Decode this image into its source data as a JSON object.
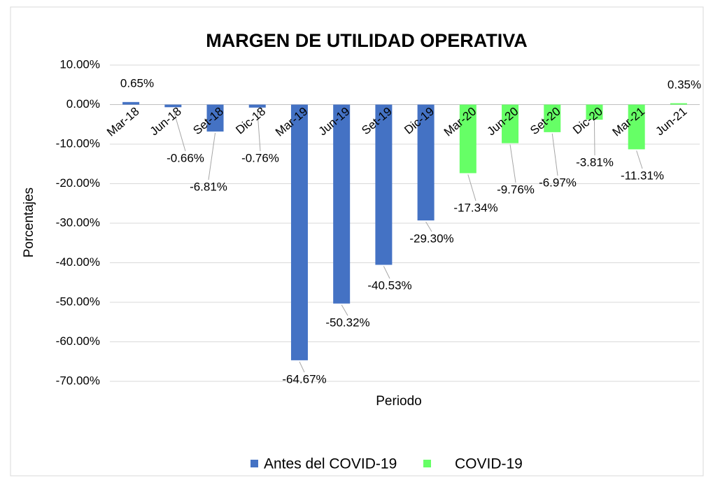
{
  "chart_data": {
    "type": "bar",
    "title": "MARGEN DE UTILIDAD OPERATIVA",
    "x_label": "Periodo",
    "y_label": "Porcentajes",
    "categories": [
      "Mar-18",
      "Jun-18",
      "Set-18",
      "Dic-18",
      "Mar-19",
      "Jun-19",
      "Set-19",
      "Dic-19",
      "Mar-20",
      "Jun-20",
      "Set-20",
      "Dic-20",
      "Mar-21",
      "Jun-21"
    ],
    "series": [
      {
        "name": "Antes del COVID-19",
        "color": "#4472c4",
        "values": [
          0.65,
          -0.66,
          -6.81,
          -0.76,
          -64.67,
          -50.32,
          -40.53,
          -29.3,
          null,
          null,
          null,
          null,
          null,
          null
        ],
        "value_labels": [
          "0.65%",
          "-0.66%",
          "-6.81%",
          "-0.76%",
          "-64.67%",
          "-50.32%",
          "-40.53%",
          "-29.30%",
          null,
          null,
          null,
          null,
          null,
          null
        ]
      },
      {
        "name": "COVID-19",
        "color": "#66ff66",
        "values": [
          null,
          null,
          null,
          null,
          null,
          null,
          null,
          null,
          -17.34,
          -9.76,
          -6.97,
          -3.81,
          -11.31,
          0.35
        ],
        "value_labels": [
          null,
          null,
          null,
          null,
          null,
          null,
          null,
          null,
          "-17.34%",
          "-9.76%",
          "-6.97%",
          "-3.81%",
          "-11.31%",
          "0.35%"
        ]
      }
    ],
    "ylim": [
      -70,
      10
    ],
    "yticks": [
      {
        "value": 10,
        "label": "10.00%"
      },
      {
        "value": 0,
        "label": "0.00%"
      },
      {
        "value": -10,
        "label": "-10.00%"
      },
      {
        "value": -20,
        "label": "-20.00%"
      },
      {
        "value": -30,
        "label": "-30.00%"
      },
      {
        "value": -40,
        "label": "-40.00%"
      },
      {
        "value": -50,
        "label": "-50.00%"
      },
      {
        "value": -60,
        "label": "-60.00%"
      },
      {
        "value": -70,
        "label": "-70.00%"
      }
    ],
    "grid": true,
    "legend": "bottom"
  }
}
